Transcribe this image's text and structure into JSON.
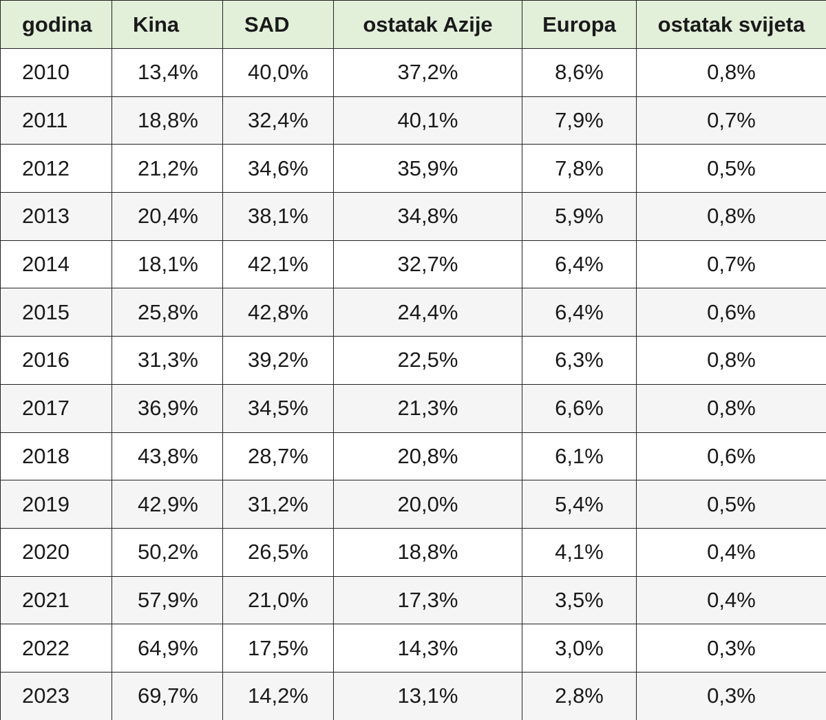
{
  "table": {
    "headers": [
      "godina",
      "Kina",
      "SAD",
      "ostatak Azije",
      "Europa",
      "ostatak svijeta"
    ],
    "rows": [
      [
        "2010",
        "13,4%",
        "40,0%",
        "37,2%",
        "8,6%",
        "0,8%"
      ],
      [
        "2011",
        "18,8%",
        "32,4%",
        "40,1%",
        "7,9%",
        "0,7%"
      ],
      [
        "2012",
        "21,2%",
        "34,6%",
        "35,9%",
        "7,8%",
        "0,5%"
      ],
      [
        "2013",
        "20,4%",
        "38,1%",
        "34,8%",
        "5,9%",
        "0,8%"
      ],
      [
        "2014",
        "18,1%",
        "42,1%",
        "32,7%",
        "6,4%",
        "0,7%"
      ],
      [
        "2015",
        "25,8%",
        "42,8%",
        "24,4%",
        "6,4%",
        "0,6%"
      ],
      [
        "2016",
        "31,3%",
        "39,2%",
        "22,5%",
        "6,3%",
        "0,8%"
      ],
      [
        "2017",
        "36,9%",
        "34,5%",
        "21,3%",
        "6,6%",
        "0,8%"
      ],
      [
        "2018",
        "43,8%",
        "28,7%",
        "20,8%",
        "6,1%",
        "0,6%"
      ],
      [
        "2019",
        "42,9%",
        "31,2%",
        "20,0%",
        "5,4%",
        "0,5%"
      ],
      [
        "2020",
        "50,2%",
        "26,5%",
        "18,8%",
        "4,1%",
        "0,4%"
      ],
      [
        "2021",
        "57,9%",
        "21,0%",
        "17,3%",
        "3,5%",
        "0,4%"
      ],
      [
        "2022",
        "64,9%",
        "17,5%",
        "14,3%",
        "3,0%",
        "0,3%"
      ],
      [
        "2023",
        "69,7%",
        "14,2%",
        "13,1%",
        "2,8%",
        "0,3%"
      ]
    ]
  },
  "colors": {
    "header_background": "#e2efd9",
    "even_row_background": "#f5f5f5",
    "border": "#222222"
  }
}
